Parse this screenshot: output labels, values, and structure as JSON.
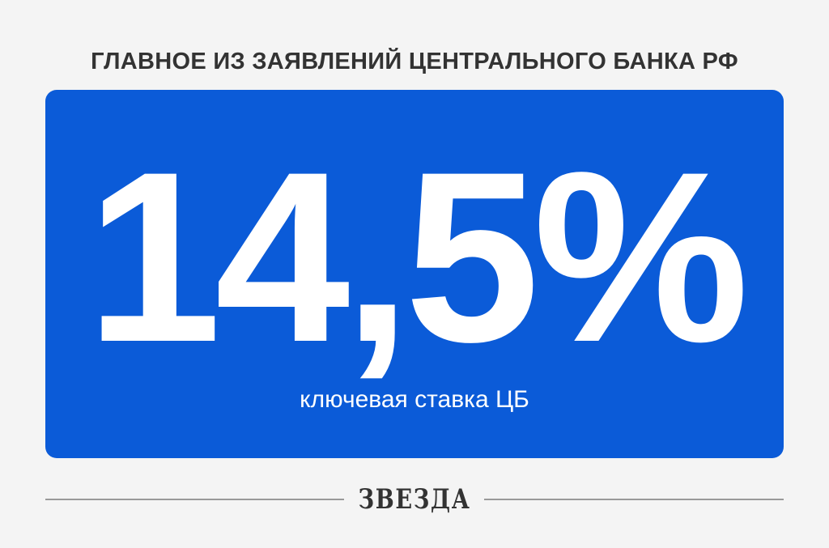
{
  "header": {
    "title": "ГЛАВНОЕ ИЗ ЗАЯВЛЕНИЙ ЦЕНТРАЛЬНОГО БАНКА РФ"
  },
  "card": {
    "value": "14,5%",
    "caption": "ключевая ставка ЦБ",
    "color": "#0b5bd8"
  },
  "footer": {
    "logo": "ЗВЕЗДА"
  }
}
